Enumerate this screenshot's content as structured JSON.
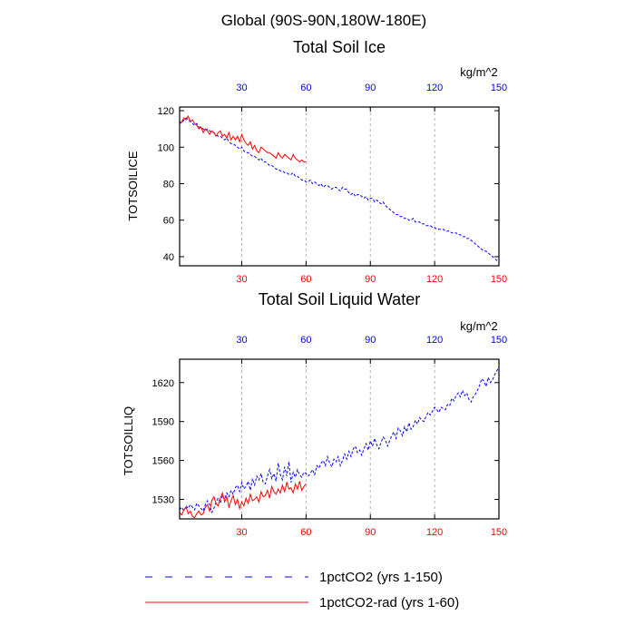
{
  "figure": {
    "super_title": "Global (90S-90N,180W-180E)",
    "legend": [
      {
        "label": "1pctCO2 (yrs 1-150)",
        "color": "#0000ff",
        "dash": "dashed"
      },
      {
        "label": "1pctCO2-rad (yrs 1-60)",
        "color": "#ff0000",
        "dash": "solid"
      }
    ],
    "colors": {
      "top_axis": "#0000ff",
      "bottom_axis": "#ff0000",
      "grid": "#b0b0b0"
    }
  },
  "chart_data": [
    {
      "type": "line",
      "title": "Total Soil Ice",
      "units": "kg/m^2",
      "ylabel": "TOTSOILICE",
      "xlim": [
        1,
        150
      ],
      "ylim": [
        35,
        122
      ],
      "xticks": [
        30,
        60,
        90,
        120,
        150
      ],
      "yticks": [
        40,
        60,
        80,
        100,
        120
      ],
      "grid": "vertical dashed at x ticks",
      "series": [
        {
          "name": "1pctCO2 (yrs 1-150)",
          "x_start": 1,
          "values": [
            114,
            113,
            115,
            116,
            115,
            114,
            113,
            112,
            113,
            111,
            111,
            110,
            109,
            110,
            109,
            108,
            108,
            107,
            106,
            106,
            105,
            104,
            105,
            103,
            102,
            102,
            101,
            100,
            99,
            100,
            98,
            97,
            97,
            96,
            95,
            95,
            94,
            93,
            94,
            92,
            92,
            91,
            90,
            90,
            89,
            88,
            88,
            87,
            87,
            86,
            86,
            85,
            85,
            86,
            84,
            84,
            83,
            82,
            82,
            81,
            81,
            82,
            80,
            81,
            80,
            79,
            80,
            78,
            79,
            79,
            78,
            77,
            78,
            78,
            77,
            76,
            78,
            77,
            77,
            75,
            74,
            75,
            73,
            74,
            74,
            73,
            72,
            73,
            71,
            72,
            72,
            70,
            71,
            70,
            69,
            70,
            68,
            67,
            66,
            65,
            64,
            63,
            63,
            62,
            62,
            61,
            61,
            60,
            60,
            61,
            59,
            59,
            59,
            58,
            58,
            57,
            57,
            57,
            56,
            56,
            55,
            55,
            55,
            55,
            54,
            54,
            54,
            53,
            53,
            53,
            52,
            52,
            51,
            51,
            50,
            50,
            49,
            48,
            47,
            46,
            45,
            44,
            43,
            43,
            42,
            41,
            40,
            39,
            38,
            37
          ]
        },
        {
          "name": "1pctCO2-rad (yrs 1-60)",
          "x_start": 1,
          "values": [
            113,
            114,
            116,
            115,
            117,
            114,
            115,
            113,
            112,
            110,
            111,
            108,
            110,
            109,
            107,
            109,
            108,
            106,
            108,
            109,
            106,
            107,
            105,
            108,
            104,
            106,
            104,
            106,
            103,
            107,
            104,
            102,
            101,
            103,
            99,
            101,
            98,
            97,
            100,
            99,
            98,
            97,
            97,
            96,
            95,
            94,
            97,
            95,
            94,
            96,
            95,
            94,
            93,
            96,
            94,
            93,
            92,
            93,
            92,
            92
          ]
        }
      ]
    },
    {
      "type": "line",
      "title": "Total Soil Liquid Water",
      "units": "kg/m^2",
      "ylabel": "TOTSOILLIQ",
      "xlim": [
        1,
        150
      ],
      "ylim": [
        1515,
        1638
      ],
      "xticks": [
        30,
        60,
        90,
        120,
        150
      ],
      "yticks": [
        1530,
        1560,
        1590,
        1620
      ],
      "grid": "vertical dashed at x ticks",
      "series": [
        {
          "name": "1pctCO2 (yrs 1-150)",
          "x_start": 1,
          "values": [
            1522,
            1524,
            1521,
            1525,
            1523,
            1526,
            1524,
            1522,
            1527,
            1525,
            1523,
            1521,
            1526,
            1529,
            1526,
            1520,
            1523,
            1528,
            1531,
            1527,
            1533,
            1530,
            1535,
            1532,
            1537,
            1534,
            1539,
            1541,
            1536,
            1543,
            1538,
            1540,
            1544,
            1537,
            1546,
            1541,
            1548,
            1545,
            1550,
            1543,
            1542,
            1548,
            1553,
            1546,
            1550,
            1544,
            1558,
            1549,
            1545,
            1555,
            1548,
            1559,
            1543,
            1551,
            1547,
            1553,
            1549,
            1547,
            1551,
            1550,
            1548,
            1550,
            1553,
            1549,
            1556,
            1554,
            1558,
            1560,
            1556,
            1563,
            1558,
            1555,
            1561,
            1559,
            1563,
            1556,
            1560,
            1565,
            1561,
            1567,
            1563,
            1569,
            1571,
            1566,
            1568,
            1564,
            1569,
            1573,
            1568,
            1575,
            1571,
            1577,
            1572,
            1569,
            1574,
            1578,
            1576,
            1571,
            1575,
            1579,
            1582,
            1577,
            1585,
            1583,
            1579,
            1586,
            1582,
            1589,
            1584,
            1586,
            1591,
            1588,
            1593,
            1591,
            1590,
            1594,
            1597,
            1595,
            1598,
            1601,
            1599,
            1597,
            1601,
            1600,
            1599,
            1603,
            1602,
            1608,
            1606,
            1610,
            1612,
            1609,
            1614,
            1610,
            1612,
            1607,
            1605,
            1609,
            1611,
            1614,
            1618,
            1623,
            1621,
            1617,
            1624,
            1620,
            1622,
            1626,
            1629,
            1632
          ]
        },
        {
          "name": "1pctCO2-rad (yrs 1-60)",
          "x_start": 1,
          "values": [
            1520,
            1518,
            1522,
            1524,
            1519,
            1521,
            1517,
            1516,
            1519,
            1521,
            1518,
            1519,
            1524,
            1526,
            1521,
            1529,
            1532,
            1527,
            1525,
            1531,
            1535,
            1528,
            1532,
            1524,
            1529,
            1533,
            1526,
            1530,
            1523,
            1528,
            1525,
            1531,
            1527,
            1534,
            1529,
            1530,
            1532,
            1528,
            1536,
            1532,
            1533,
            1537,
            1531,
            1540,
            1536,
            1534,
            1538,
            1535,
            1541,
            1536,
            1543,
            1538,
            1539,
            1535,
            1542,
            1538,
            1544,
            1537,
            1540,
            1542
          ]
        }
      ]
    }
  ]
}
